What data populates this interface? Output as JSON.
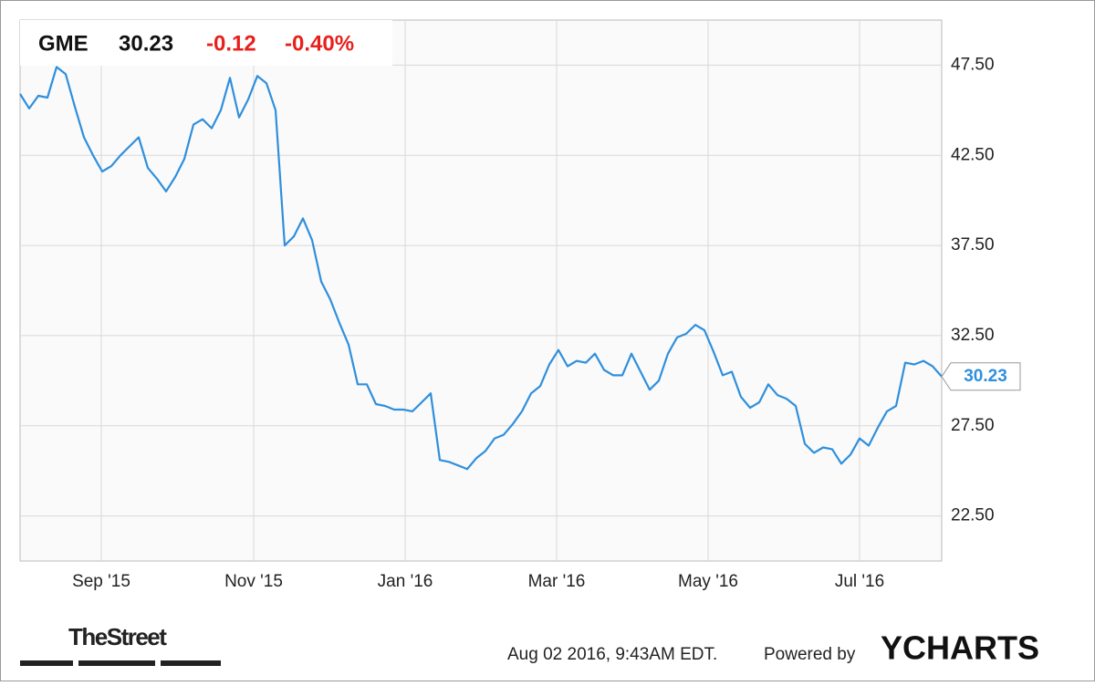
{
  "chart_data": {
    "type": "line",
    "header": {
      "ticker": "GME",
      "change": "-0.12",
      "change_pct": "-0.40%"
    },
    "series": [
      {
        "name": "GME",
        "color": "#2f8fdc",
        "values": [
          45.9,
          45.1,
          45.8,
          45.7,
          47.4,
          47.0,
          45.2,
          43.5,
          42.5,
          41.6,
          41.9,
          42.5,
          43.0,
          43.5,
          41.8,
          41.2,
          40.5,
          41.3,
          42.3,
          44.2,
          44.5,
          44.0,
          45.0,
          46.8,
          44.6,
          45.6,
          46.9,
          46.5,
          45.0,
          37.5,
          38.0,
          39.0,
          37.8,
          35.5,
          34.5,
          33.2,
          32.0,
          29.8,
          29.8,
          28.7,
          28.6,
          28.4,
          28.4,
          28.3,
          28.8,
          29.3,
          25.6,
          25.5,
          25.3,
          25.1,
          25.7,
          26.1,
          26.8,
          27.0,
          27.6,
          28.3,
          29.3,
          29.7,
          30.9,
          31.7,
          30.8,
          31.1,
          31.0,
          31.5,
          30.6,
          30.3,
          30.3,
          31.5,
          30.5,
          29.5,
          30.0,
          31.5,
          32.4,
          32.6,
          33.1,
          32.8,
          31.6,
          30.3,
          30.5,
          29.1,
          28.5,
          28.8,
          29.8,
          29.2,
          29.0,
          28.6,
          26.5,
          26.0,
          26.3,
          26.2,
          25.4,
          25.9,
          26.8,
          26.4,
          27.4,
          28.3,
          28.6,
          31.0,
          30.9,
          31.1,
          30.8,
          30.23
        ]
      }
    ],
    "xlim": [
      0,
      101
    ],
    "xticks": [
      {
        "value": 8.9,
        "label": "Sep '15"
      },
      {
        "value": 25.6,
        "label": "Nov '15"
      },
      {
        "value": 42.2,
        "label": "Jan '16"
      },
      {
        "value": 58.8,
        "label": "Mar '16"
      },
      {
        "value": 75.4,
        "label": "May '16"
      },
      {
        "value": 92,
        "label": "Jul '16"
      }
    ],
    "ylim": [
      20,
      50
    ],
    "yticks": [
      {
        "value": 22.5,
        "label": "22.50"
      },
      {
        "value": 27.5,
        "label": "27.50"
      },
      {
        "value": 32.5,
        "label": "32.50"
      },
      {
        "value": 37.5,
        "label": "37.50"
      },
      {
        "value": 42.5,
        "label": "42.50"
      },
      {
        "value": 47.5,
        "label": "47.50"
      }
    ],
    "grid": true,
    "source_logo": "TheStreet",
    "timestamp": "Aug 02 2016, 9:43AM EDT.",
    "powered_by": "Powered by",
    "brand": "YCHARTS"
  }
}
